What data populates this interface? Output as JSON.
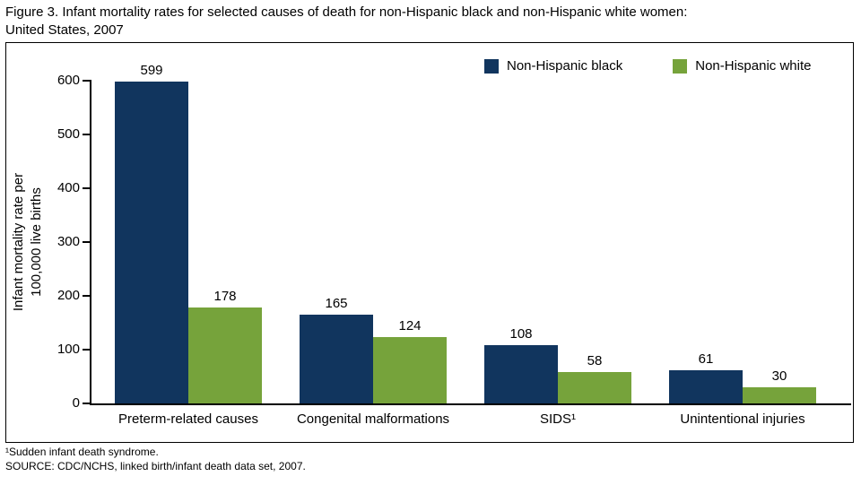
{
  "page": {
    "title_line1": "Figure 3. Infant mortality rates for selected causes of death for non-Hispanic black and non-Hispanic white women:",
    "title_line2": "United States, 2007",
    "footnote": "¹Sudden infant death syndrome.",
    "source": "SOURCE: CDC/NCHS, linked birth/infant death data set, 2007."
  },
  "chart_data": {
    "type": "bar",
    "title": "Infant mortality rates for selected causes of death for non-Hispanic black and non-Hispanic white women: United States, 2007",
    "categories": [
      "Preterm-related causes",
      "Congenital malformations",
      "SIDS¹",
      "Unintentional injuries"
    ],
    "series": [
      {
        "name": "Non-Hispanic black",
        "color": "#11355E",
        "values": [
          599,
          165,
          108,
          61
        ]
      },
      {
        "name": "Non-Hispanic white",
        "color": "#76A33B",
        "values": [
          178,
          124,
          58,
          30
        ]
      }
    ],
    "ylabel": "Infant mortality rate per 100,000 live births",
    "ylabel_lines": [
      "Infant mortality rate per",
      "100,000 live births"
    ],
    "xlabel": "",
    "ylim": [
      0,
      600
    ],
    "yticks": [
      0,
      100,
      200,
      300,
      400,
      500,
      600
    ],
    "grid": false,
    "legend_position": "top-right",
    "value_labels": true
  }
}
